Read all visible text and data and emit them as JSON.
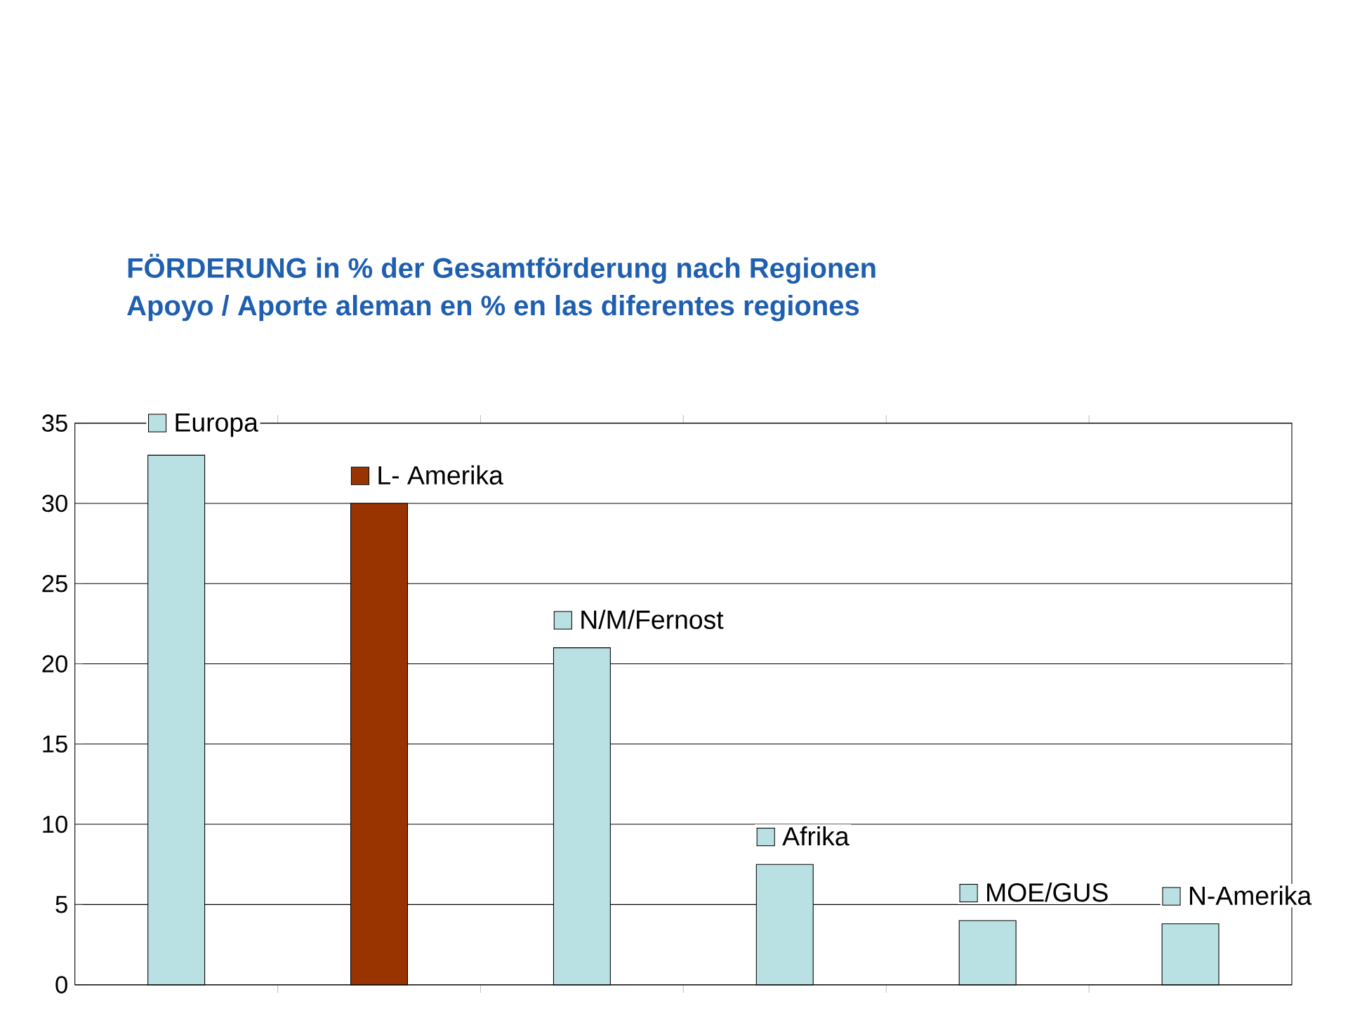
{
  "chart_data": {
    "type": "bar",
    "title": "FÖRDERUNG in % der Gesamtförderung nach Regionen",
    "subtitle": "Apoyo / Aporte aleman en % en las diferentes regiones",
    "categories": [
      "Europa",
      "L- Amerika",
      "N/M/Fernost",
      "Afrika",
      "MOE/GUS",
      "N-Amerika"
    ],
    "values": [
      33,
      30,
      21,
      7.5,
      4,
      3.8
    ],
    "colors": [
      "#b9e0e3",
      "#993300",
      "#b9e0e3",
      "#b9e0e3",
      "#b9e0e3",
      "#b9e0e3"
    ],
    "ylim": [
      0,
      35
    ],
    "yticks": [
      0,
      5,
      10,
      15,
      20,
      25,
      30,
      35
    ],
    "grid": "y"
  }
}
